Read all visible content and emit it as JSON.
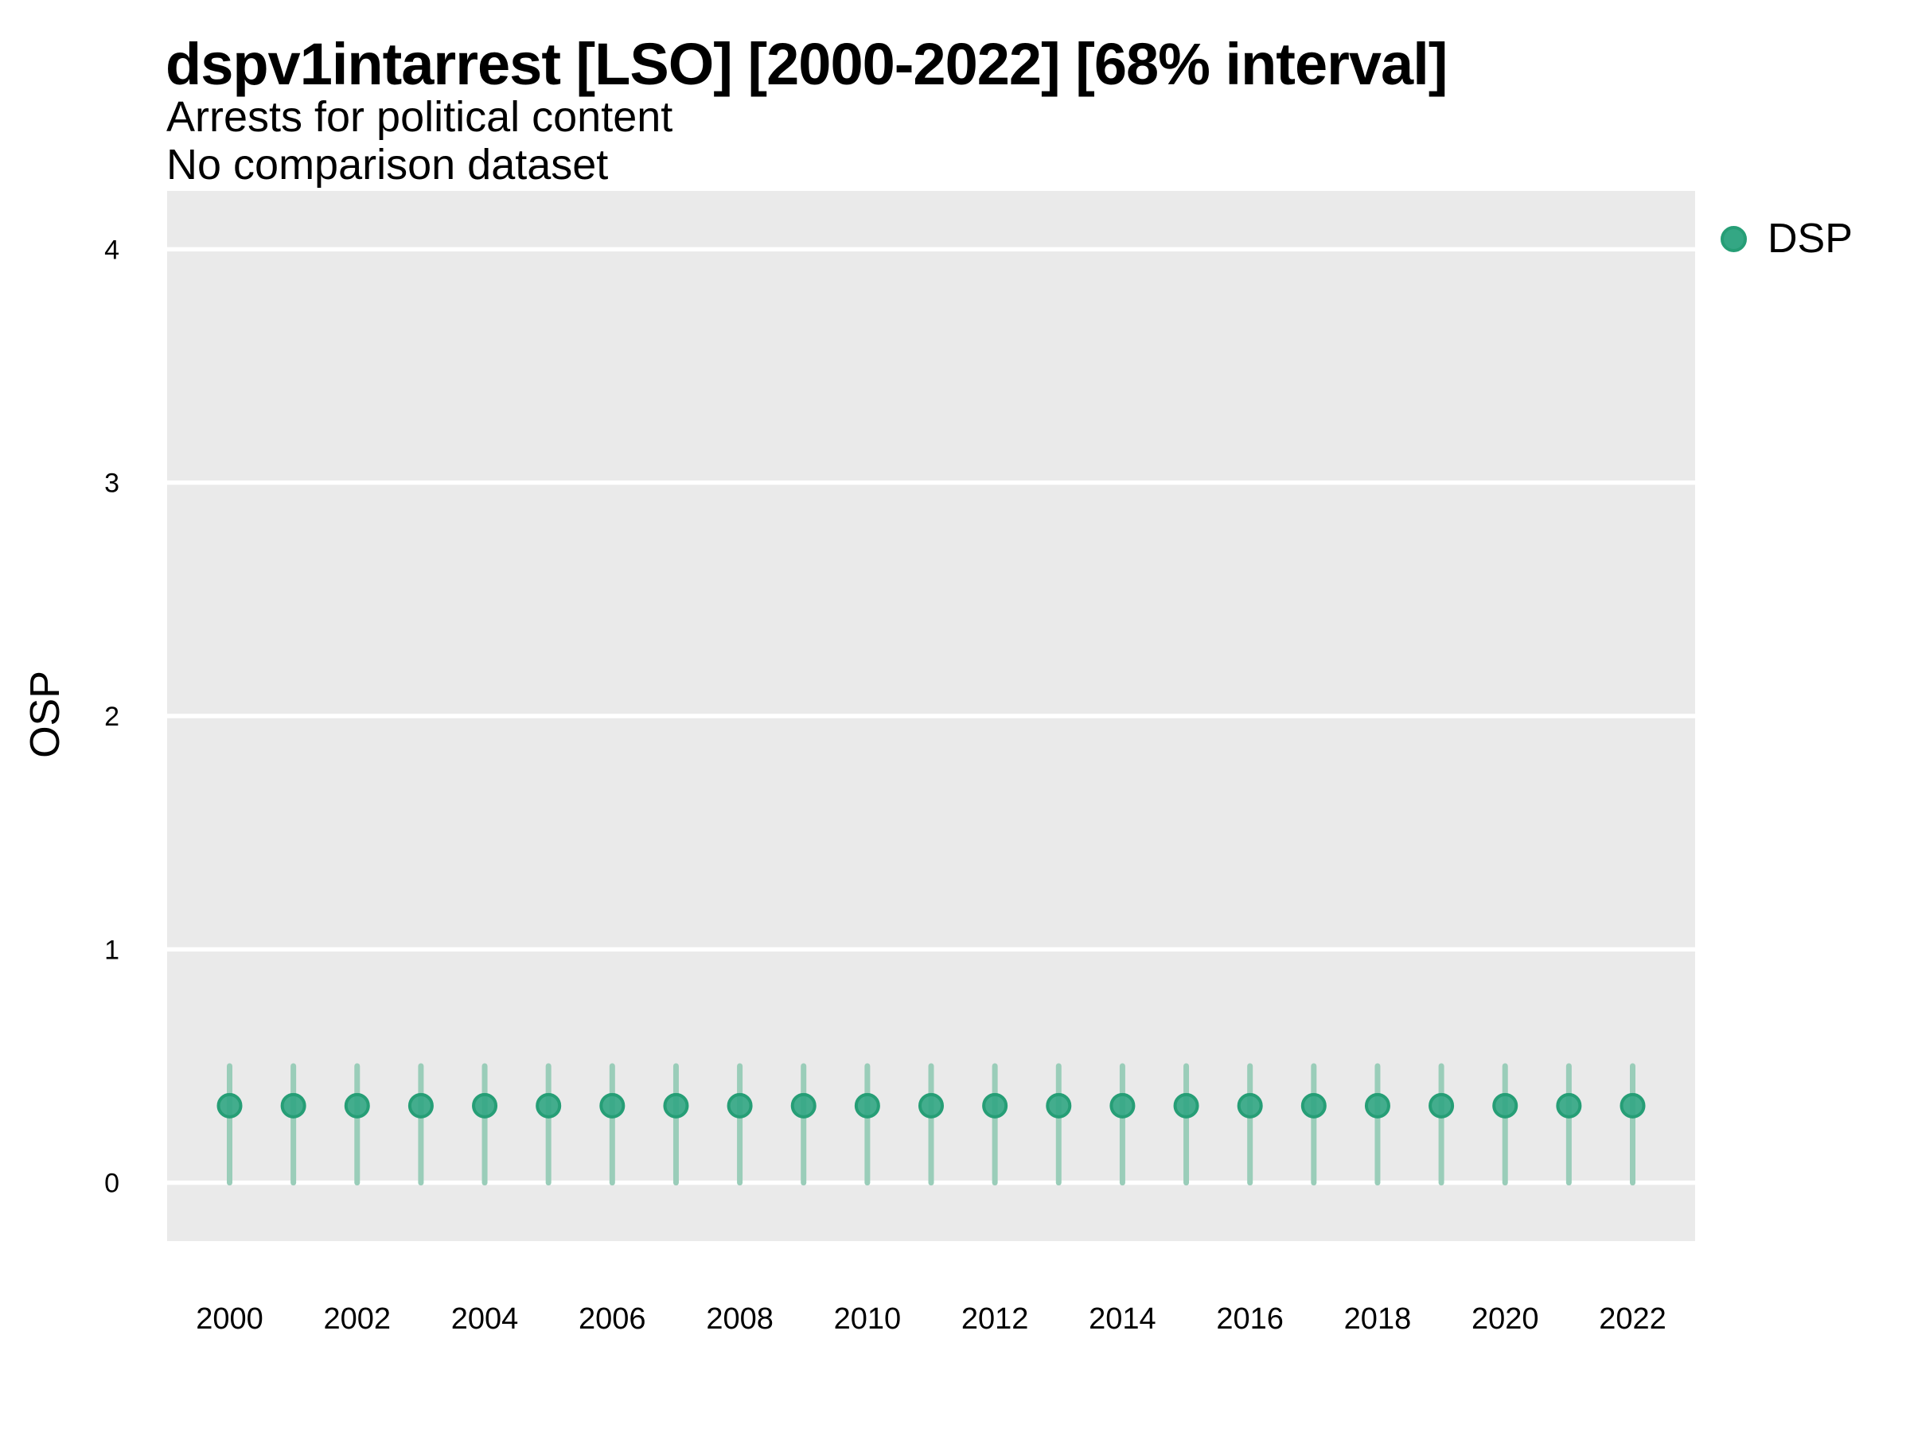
{
  "header": {
    "title": "dspv1intarrest [LSO] [2000-2022] [68% interval]",
    "subtitle": "Arrests for political content",
    "note": "No comparison dataset"
  },
  "legend": {
    "position": "right-top",
    "items": [
      {
        "label": "DSP",
        "marker": "circle-icon",
        "color": "#34A784"
      }
    ]
  },
  "colors": {
    "background": "#FFFFFF",
    "panel_bg": "#EAEAEA",
    "gridline": "#FFFFFF",
    "point_fill": "#34A784",
    "point_stroke": "#269E76",
    "interval_bar": "#9ACDB9",
    "text": "#000000"
  },
  "chart_data": {
    "type": "scatter",
    "title": "dspv1intarrest [LSO] [2000-2022] [68% interval]",
    "subtitle": "Arrests for political content",
    "note": "No comparison dataset",
    "xlabel": "",
    "ylabel": "OSP",
    "interval_label": "68% interval",
    "grid": "major-horizontal-only",
    "legend_position": "right",
    "ylim": [
      -0.25,
      4.25
    ],
    "yticks": [
      0,
      1,
      2,
      3,
      4
    ],
    "xticks": [
      2000,
      2002,
      2004,
      2006,
      2008,
      2010,
      2012,
      2014,
      2016,
      2018,
      2020,
      2022
    ],
    "x": [
      2000,
      2001,
      2002,
      2003,
      2004,
      2005,
      2006,
      2007,
      2008,
      2009,
      2010,
      2011,
      2012,
      2013,
      2014,
      2015,
      2016,
      2017,
      2018,
      2019,
      2020,
      2021,
      2022
    ],
    "series": [
      {
        "name": "DSP",
        "values": [
          0.33,
          0.33,
          0.33,
          0.33,
          0.33,
          0.33,
          0.33,
          0.33,
          0.33,
          0.33,
          0.33,
          0.33,
          0.33,
          0.33,
          0.33,
          0.33,
          0.33,
          0.33,
          0.33,
          0.33,
          0.33,
          0.33,
          0.33
        ],
        "low": [
          0.0,
          0.0,
          0.0,
          0.0,
          0.0,
          0.0,
          0.0,
          0.0,
          0.0,
          0.0,
          0.0,
          0.0,
          0.0,
          0.0,
          0.0,
          0.0,
          0.0,
          0.0,
          0.0,
          0.0,
          0.0,
          0.0,
          0.0
        ],
        "high": [
          0.5,
          0.5,
          0.5,
          0.5,
          0.5,
          0.5,
          0.5,
          0.5,
          0.5,
          0.5,
          0.5,
          0.5,
          0.5,
          0.5,
          0.5,
          0.5,
          0.5,
          0.5,
          0.5,
          0.5,
          0.5,
          0.5,
          0.5
        ]
      }
    ]
  }
}
